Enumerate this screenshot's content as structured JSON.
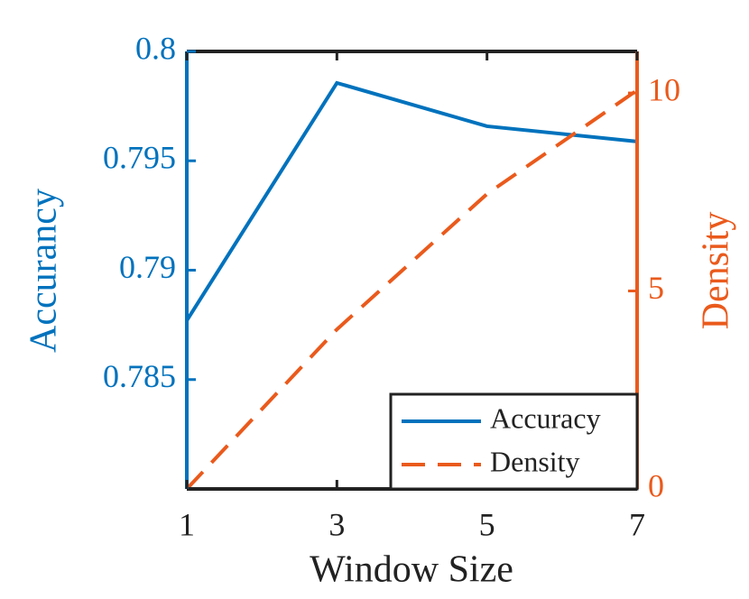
{
  "chart_data": {
    "type": "line",
    "xlabel": "Window Size",
    "ylabel": "Accurancy",
    "y2label": "Density",
    "x": [
      1,
      3,
      5,
      7
    ],
    "xlim": [
      1,
      7
    ],
    "xticks": [
      1,
      3,
      5,
      7
    ],
    "ylim": [
      0.78,
      0.8
    ],
    "yticks": [
      0.785,
      0.79,
      0.795,
      0.8
    ],
    "y2lim": [
      0,
      11.05
    ],
    "y2ticks": [
      0,
      5,
      10
    ],
    "y_color": "#0072bd",
    "y2_color": "#ea5a1c",
    "legend": "lower right",
    "series": [
      {
        "name": "Accuracy",
        "color": "#0072bd",
        "dash": "solid",
        "values": [
          0.7877,
          0.79856,
          0.79658,
          0.79588
        ]
      },
      {
        "name": "Density",
        "color": "#ea5a1c",
        "dash": "dashed",
        "axis": "y2",
        "values": [
          0,
          4.03,
          7.45,
          10.07
        ]
      }
    ]
  }
}
